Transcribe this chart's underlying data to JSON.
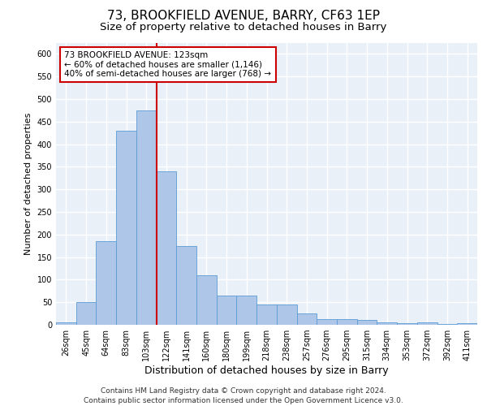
{
  "title1": "73, BROOKFIELD AVENUE, BARRY, CF63 1EP",
  "title2": "Size of property relative to detached houses in Barry",
  "xlabel": "Distribution of detached houses by size in Barry",
  "ylabel": "Number of detached properties",
  "categories": [
    "26sqm",
    "45sqm",
    "64sqm",
    "83sqm",
    "103sqm",
    "122sqm",
    "141sqm",
    "160sqm",
    "180sqm",
    "199sqm",
    "218sqm",
    "238sqm",
    "257sqm",
    "276sqm",
    "295sqm",
    "315sqm",
    "334sqm",
    "353sqm",
    "372sqm",
    "392sqm",
    "411sqm"
  ],
  "values": [
    5,
    50,
    185,
    430,
    475,
    340,
    175,
    110,
    65,
    65,
    45,
    45,
    25,
    12,
    12,
    10,
    5,
    3,
    5,
    2,
    3
  ],
  "bar_color": "#aec6e8",
  "bar_edge_color": "#5b9bd5",
  "vline_color": "#cc0000",
  "vline_x": 4.5,
  "annotation_text": "73 BROOKFIELD AVENUE: 123sqm\n← 60% of detached houses are smaller (1,146)\n40% of semi-detached houses are larger (768) →",
  "annotation_box_color": "#ffffff",
  "annotation_box_edge": "#cc0000",
  "footer": "Contains HM Land Registry data © Crown copyright and database right 2024.\nContains public sector information licensed under the Open Government Licence v3.0.",
  "ylim": [
    0,
    625
  ],
  "yticks": [
    0,
    50,
    100,
    150,
    200,
    250,
    300,
    350,
    400,
    450,
    500,
    550,
    600
  ],
  "bg_color": "#eaf0f8",
  "grid_color": "#ffffff",
  "title1_fontsize": 11,
  "title2_fontsize": 9.5,
  "xlabel_fontsize": 9,
  "ylabel_fontsize": 8,
  "tick_fontsize": 7,
  "footer_fontsize": 6.5,
  "annotation_fontsize": 7.5
}
